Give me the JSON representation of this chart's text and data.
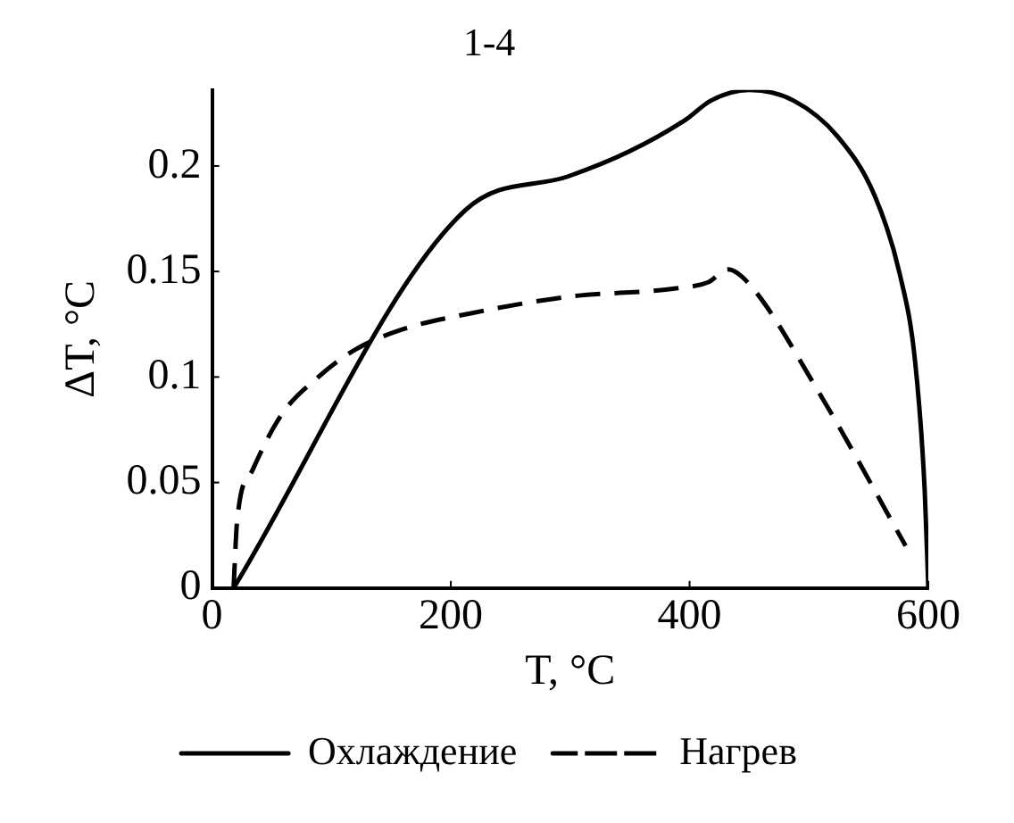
{
  "chart_data": {
    "type": "line",
    "title": "1-4",
    "xlabel": "T, °C",
    "ylabel": "ΔT, °C",
    "xlim": [
      0,
      600
    ],
    "ylim": [
      0,
      0.236
    ],
    "xticks": [
      0,
      200,
      400,
      600
    ],
    "yticks": [
      0,
      0.05,
      0.1,
      0.15,
      0.2
    ],
    "grid": false,
    "legend": "bottom",
    "marker": "none",
    "series": [
      {
        "name": "Охлаждение",
        "color": "#000000",
        "line_style": "solid",
        "x": [
          18,
          212,
          298,
          350,
          397,
          418,
          450,
          487,
          524,
          555,
          576,
          589,
          597,
          600
        ],
        "values": [
          0,
          0.179,
          0.195,
          0.207,
          0.222,
          0.231,
          0.236,
          0.231,
          0.214,
          0.186,
          0.149,
          0.107,
          0.046,
          0
        ]
      },
      {
        "name": "Нагрев",
        "color": "#000000",
        "line_style": "dashed",
        "x": [
          18,
          21,
          34,
          58,
          89,
          120,
          162,
          215,
          298,
          389,
          416,
          432,
          450,
          507,
          581
        ],
        "values": [
          0,
          0.032,
          0.056,
          0.082,
          0.1,
          0.113,
          0.123,
          0.13,
          0.138,
          0.142,
          0.145,
          0.151,
          0.144,
          0.094,
          0.02
        ]
      }
    ]
  }
}
